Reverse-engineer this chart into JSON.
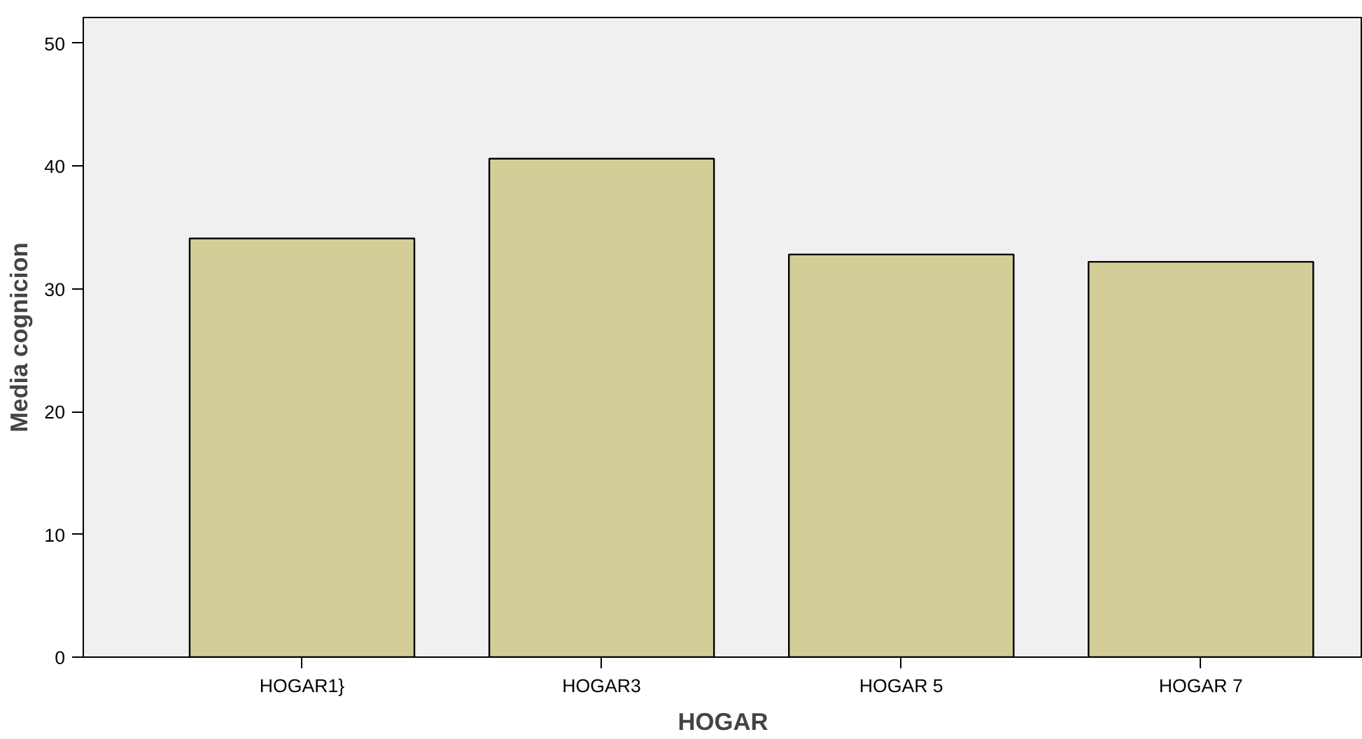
{
  "chart_data": {
    "type": "bar",
    "xlabel": "HOGAR",
    "ylabel": "Media cognicion",
    "categories": [
      "HOGAR1}",
      "HOGAR3",
      "HOGAR 5",
      "HOGAR 7"
    ],
    "values": [
      34.1,
      40.6,
      32.8,
      32.2
    ],
    "color": "#d3ce98",
    "ylim": [
      0,
      52.1
    ],
    "yticks": [
      0,
      10,
      20,
      30,
      40,
      50
    ],
    "grid": false
  }
}
